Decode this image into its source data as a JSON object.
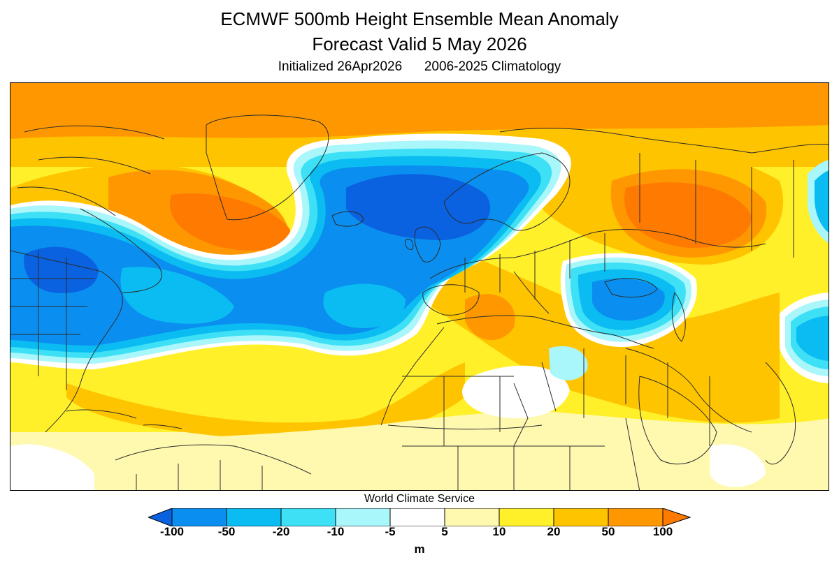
{
  "title_line1": "ECMWF 500mb Height Ensemble Mean Anomaly",
  "title_line2": "Forecast Valid 5 May 2026",
  "subtitle": "Initialized 26Apr2026      2006-2025 Climatology",
  "credit": "World Climate Service",
  "colorbar": {
    "units": "m",
    "tick_labels": [
      "-100",
      "-50",
      "-20",
      "-10",
      "-5",
      "5",
      "10",
      "20",
      "50",
      "100"
    ],
    "colors": {
      "lt_-100": "#0a62e0",
      "-100_-50": "#0a8ff0",
      "-50_-20": "#0bbcf2",
      "-20_-10": "#3ee0f5",
      "-10_-5": "#a9f6fb",
      "-5_5": "#ffffff",
      "5_10": "#fff9b0",
      "10_20": "#fff02a",
      "20_50": "#ffc400",
      "50_100": "#ff9800",
      "gt_100": "#ff7a00"
    }
  },
  "map": {
    "region": "North Atlantic, Europe, North Africa, eastern North America",
    "features": [
      {
        "name": "Arctic high-latitude ridge",
        "sign": "positive",
        "peak": "50_100"
      },
      {
        "name": "Greenland/Baffin ridge",
        "sign": "positive",
        "peak": "gt_100"
      },
      {
        "name": "Norwegian Sea trough",
        "sign": "negative",
        "peak": "lt_-100"
      },
      {
        "name": "Great Lakes trough",
        "sign": "negative",
        "peak": "lt_-100"
      },
      {
        "name": "West-central Atlantic trough",
        "sign": "negative",
        "peak": "-100_-50"
      },
      {
        "name": "Western Russia ridge",
        "sign": "positive",
        "peak": "gt_100"
      },
      {
        "name": "Black Sea / Turkey trough",
        "sign": "negative",
        "peak": "-100_-50"
      },
      {
        "name": "Mediterranean / North Africa ridge",
        "sign": "positive",
        "peak": "50_100"
      },
      {
        "name": "Central Asia trough",
        "sign": "negative",
        "peak": "-50_-20"
      }
    ]
  }
}
